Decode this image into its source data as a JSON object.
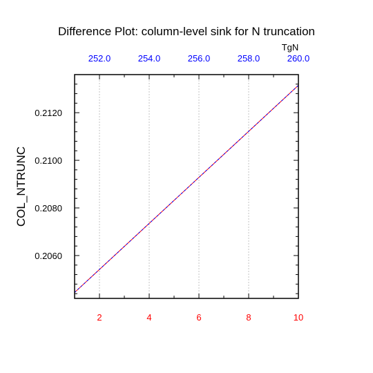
{
  "chart_data": {
    "type": "line",
    "title": "Difference Plot: column-level sink for N truncation",
    "ylabel": "COL_NTRUNC",
    "top_axis_unit": "TgN",
    "x": {
      "min": 1,
      "max": 10,
      "ticks": [
        2,
        4,
        6,
        8,
        10
      ],
      "tick_labels": [
        "2",
        "4",
        "6",
        "8",
        "10"
      ],
      "color": "#ff0000"
    },
    "x_top": {
      "ticks": [
        252.0,
        254.0,
        256.0,
        258.0,
        260.0
      ],
      "tick_labels": [
        "252.0",
        "254.0",
        "256.0",
        "258.0",
        "260.0"
      ],
      "color": "#0000ff"
    },
    "y": {
      "min": 0.2042,
      "max": 0.2136,
      "ticks": [
        0.206,
        0.208,
        0.21,
        0.212
      ],
      "tick_labels": [
        "0.2060",
        "0.2080",
        "0.2100",
        "0.2120"
      ]
    },
    "grid": "vertical dashed",
    "series": [
      {
        "color": "#ff0000",
        "x": [
          1,
          10
        ],
        "y": [
          0.20445,
          0.21315
        ]
      },
      {
        "color": "#0000ff",
        "x": [
          1,
          10
        ],
        "y": [
          0.20445,
          0.21315
        ]
      }
    ]
  }
}
